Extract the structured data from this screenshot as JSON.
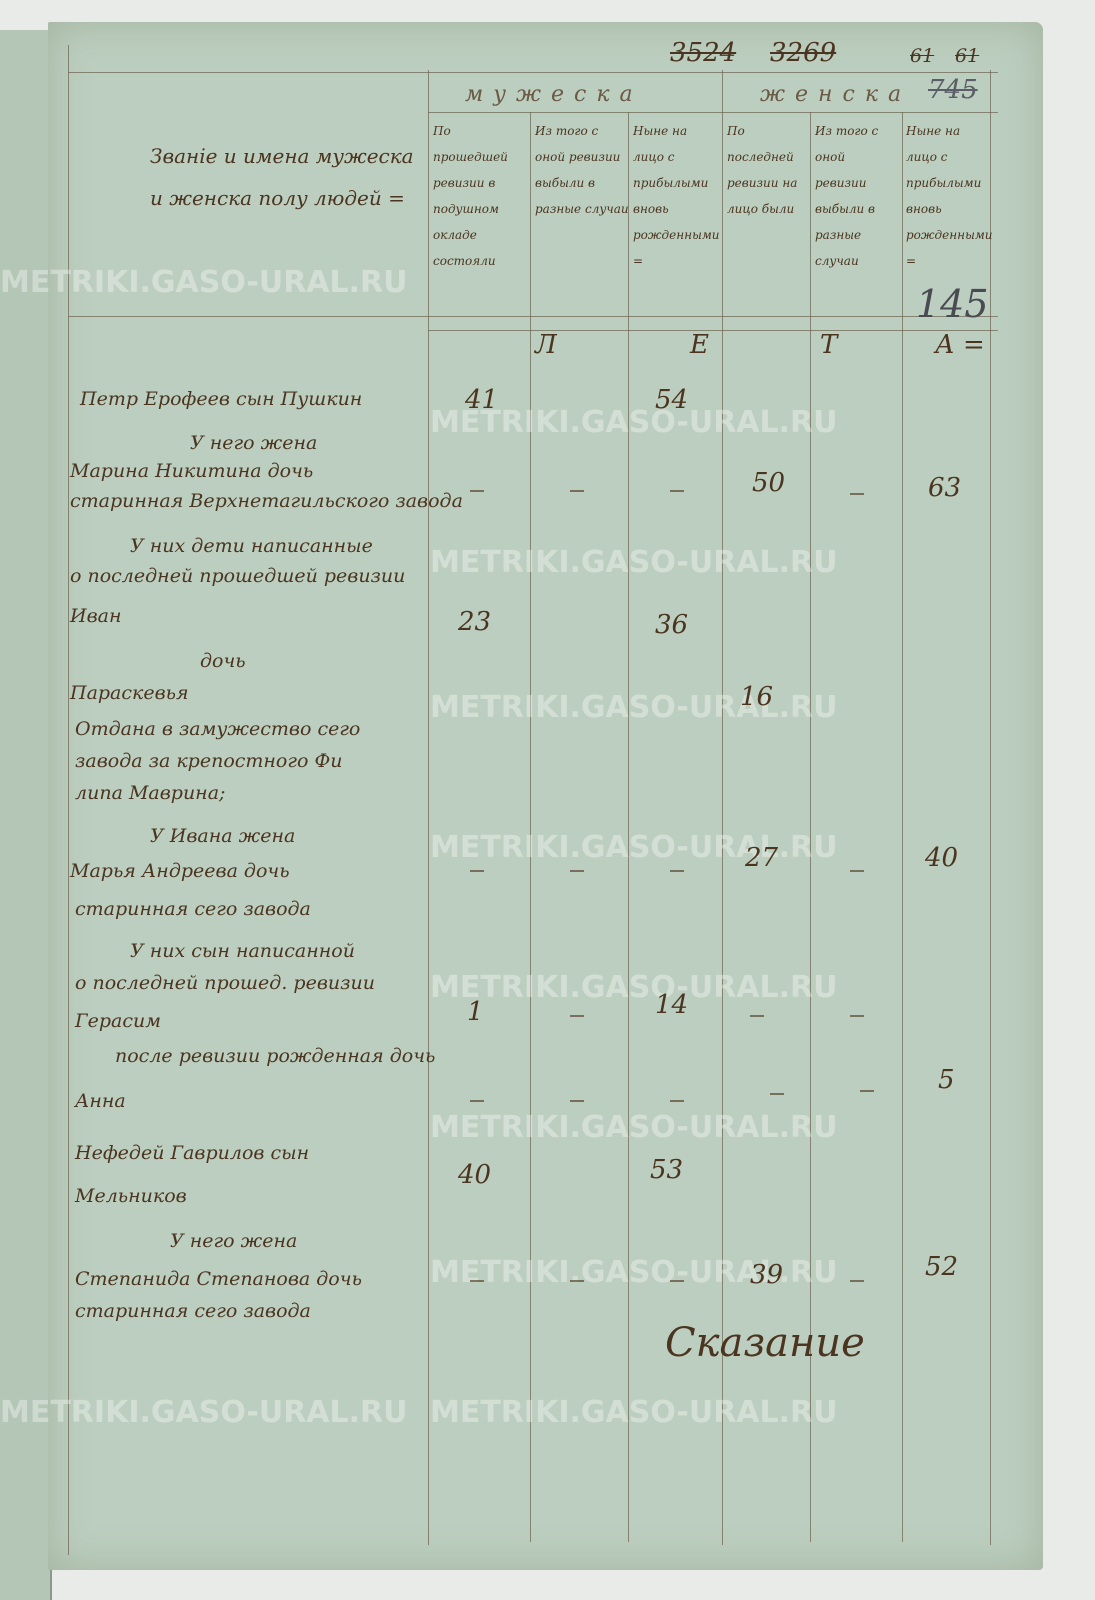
{
  "top_numbers": {
    "struck_a": "3524",
    "b": "3269",
    "folio_struck": "61",
    "folio": "61",
    "female_struck": "745",
    "female_total": "145"
  },
  "header": {
    "name_column": "Званіе и имена мужеска и женска полу людей =",
    "male_group": "мужеска",
    "female_group": "женска",
    "columns": [
      "По прошедшей ревизии в подушном окладе состояли",
      "Из того с оной ревизии выбыли в разные случаи",
      "Ныне на лицо с прибылыми вновь рожденными =",
      "По последней ревизии на лицо были",
      "Из того с оной ревизии выбыли в разные случаи",
      "Ныне на лицо с прибылыми вновь рожденными ="
    ],
    "years": [
      "Л",
      "Е",
      "Т",
      "А ="
    ]
  },
  "lines": [
    "Петр Ерофеев сын Пушкин",
    "У него жена",
    "Марина Никитина дочь",
    "старинная Верхнетагильского завода",
    "У них дети написанные",
    "о последней прошедшей ревизии",
    "Иван",
    "дочь",
    "Параскевья",
    "Отдана в замужество сего",
    "завода за крепостного Фи",
    "липа Маврина;",
    "У Ивана жена",
    "Марья Андреева дочь",
    "старинная сего завода",
    "У них сын написанной",
    "о последней прошед. ревизии",
    "Герасим",
    "после ревизии рожденная дочь",
    "Анна",
    "Нефедей Гаврилов сын",
    "Мельников",
    "У него жена",
    "Степанида Степанова дочь",
    "старинная сего завода"
  ],
  "ages": {
    "petr": {
      "prev": "41",
      "now": "54"
    },
    "marina": {
      "prev": "50",
      "now": "63"
    },
    "ivan": {
      "prev": "23",
      "now": "36"
    },
    "paraskevya": {
      "prev": "16"
    },
    "marya": {
      "prev": "27",
      "now": "40"
    },
    "gerasim": {
      "prev": "1",
      "now": "14"
    },
    "anna": {
      "now": "5"
    },
    "nefedey": {
      "prev": "40",
      "now": "53"
    },
    "stepanida": {
      "prev": "39",
      "now": "52"
    }
  },
  "signature": "Сказание",
  "watermark": "METRIKI.GASO-URAL.RU",
  "colors": {
    "paper": "#bccebf",
    "ink": "#4b3520"
  }
}
